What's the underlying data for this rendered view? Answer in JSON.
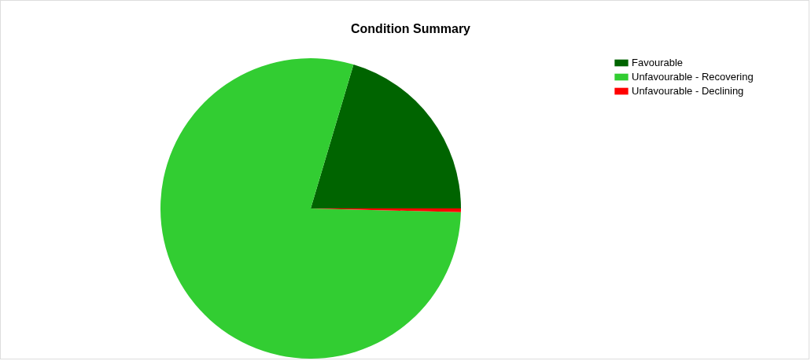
{
  "chart_data": {
    "type": "pie",
    "title": "Condition Summary",
    "categories": [
      "Favourable",
      "Unfavourable - Recovering",
      "Unfavourable - Declining"
    ],
    "values": [
      20.4,
      79.2,
      0.4
    ],
    "colors": [
      "#006400",
      "#32cd32",
      "#ff0000"
    ],
    "legend": "top right"
  }
}
